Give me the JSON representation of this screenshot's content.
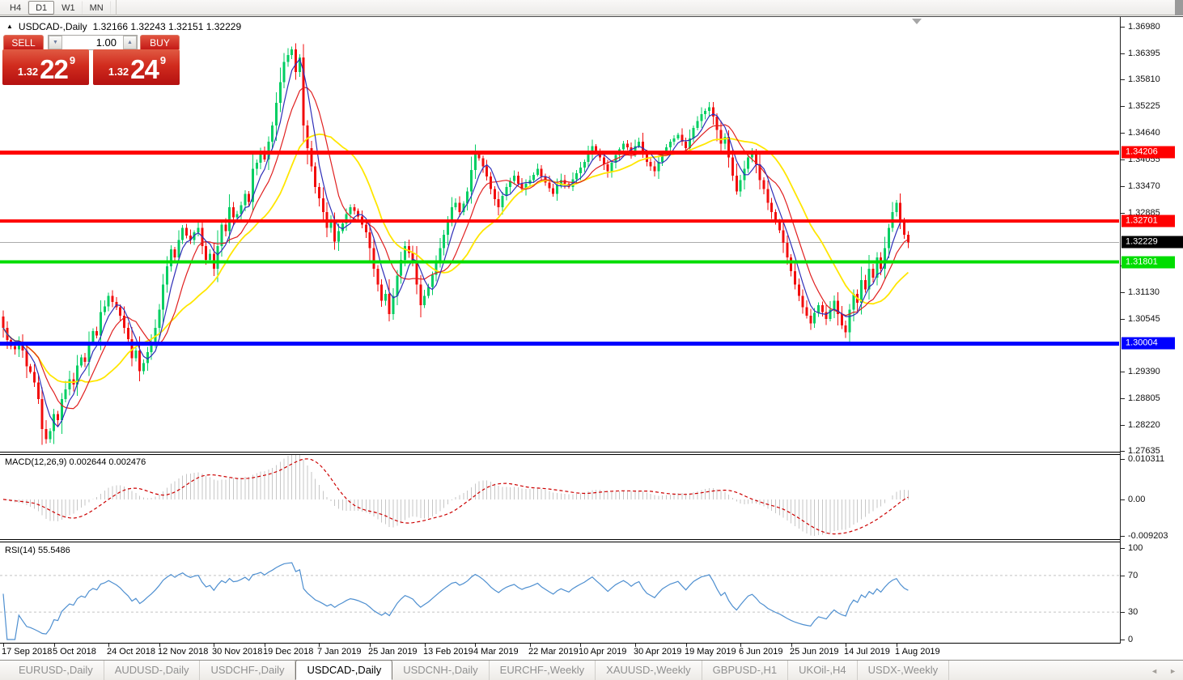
{
  "toolbar": {
    "timeframes": [
      {
        "label": "H4",
        "active": false
      },
      {
        "label": "D1",
        "active": true
      },
      {
        "label": "W1",
        "active": false
      },
      {
        "label": "MN",
        "active": false
      }
    ]
  },
  "icons": {
    "collapse": "▲",
    "spinner_down": "▼",
    "spinner_up": "▲",
    "tab_prev": "◄",
    "tab_next": "►"
  },
  "header": {
    "symbol": "USDCAD-,Daily",
    "ohlc": "1.32166 1.32243 1.32151 1.32229"
  },
  "trade_panel": {
    "sell_label": "SELL",
    "buy_label": "BUY",
    "volume": "1.00",
    "sell_price": {
      "prefix": "1.32",
      "big": "22",
      "sup": "9"
    },
    "buy_price": {
      "prefix": "1.32",
      "big": "24",
      "sup": "9"
    }
  },
  "price_axis": {
    "ticks": [
      {
        "label": "1.36980",
        "value": 1.3698
      },
      {
        "label": "1.36395",
        "value": 1.36395
      },
      {
        "label": "1.35810",
        "value": 1.3581
      },
      {
        "label": "1.35225",
        "value": 1.35225
      },
      {
        "label": "1.34640",
        "value": 1.3464
      },
      {
        "label": "1.34055",
        "value": 1.34055
      },
      {
        "label": "1.33470",
        "value": 1.3347
      },
      {
        "label": "1.32885",
        "value": 1.32885
      },
      {
        "label": "1.31715",
        "value": 1.31715
      },
      {
        "label": "1.31130",
        "value": 1.3113
      },
      {
        "label": "1.30545",
        "value": 1.30545
      },
      {
        "label": "1.29390",
        "value": 1.2939
      },
      {
        "label": "1.28805",
        "value": 1.28805
      },
      {
        "label": "1.28220",
        "value": 1.2822
      },
      {
        "label": "1.27635",
        "value": 1.27635
      }
    ]
  },
  "levels": [
    {
      "label": "1.34206",
      "value": 1.34206,
      "color": "#ff0000",
      "thickness": 5
    },
    {
      "label": "1.32701",
      "value": 1.32701,
      "color": "#ff0000",
      "thickness": 4
    },
    {
      "label": "1.31801",
      "value": 1.31801,
      "color": "#00dd00",
      "thickness": 4
    },
    {
      "label": "1.30004",
      "value": 1.30004,
      "color": "#0000ff",
      "thickness": 5
    }
  ],
  "current_price": {
    "label": "1.32229",
    "value": 1.32229,
    "line_color": "#ababab",
    "badge_bg": "#000000"
  },
  "x_axis": {
    "labels": [
      {
        "text": "17 Sep 2018",
        "index": 0
      },
      {
        "text": "5 Oct 2018",
        "index": 13
      },
      {
        "text": "24 Oct 2018",
        "index": 27
      },
      {
        "text": "12 Nov 2018",
        "index": 40
      },
      {
        "text": "30 Nov 2018",
        "index": 54
      },
      {
        "text": "19 Dec 2018",
        "index": 67
      },
      {
        "text": "7 Jan 2019",
        "index": 81
      },
      {
        "text": "25 Jan 2019",
        "index": 94
      },
      {
        "text": "13 Feb 2019",
        "index": 108
      },
      {
        "text": "4 Mar 2019",
        "index": 121
      },
      {
        "text": "22 Mar 2019",
        "index": 135
      },
      {
        "text": "10 Apr 2019",
        "index": 148
      },
      {
        "text": "30 Apr 2019",
        "index": 162
      },
      {
        "text": "19 May 2019",
        "index": 175
      },
      {
        "text": "6 Jun 2019",
        "index": 189
      },
      {
        "text": "25 Jun 2019",
        "index": 202
      },
      {
        "text": "14 Jul 2019",
        "index": 216
      },
      {
        "text": "1 Aug 2019",
        "index": 229
      }
    ]
  },
  "macd_panel": {
    "legend": "MACD(12,26,9) 0.002644 0.002476",
    "ticks": [
      {
        "label": "0.010311",
        "value": 0.010311
      },
      {
        "label": "0.00",
        "value": 0
      },
      {
        "label": "-0.009203",
        "value": -0.009203
      }
    ],
    "bar_color": "#c6c6c6",
    "signal_color": "#cc0000"
  },
  "rsi_panel": {
    "legend": "RSI(14) 55.5486",
    "ticks": [
      {
        "label": "100",
        "value": 100
      },
      {
        "label": "70",
        "value": 70
      },
      {
        "label": "30",
        "value": 30
      },
      {
        "label": "0",
        "value": 0
      }
    ],
    "dashed_levels": [
      70,
      30
    ],
    "line_color": "#4e8fd0",
    "level_color": "#c4c4c4"
  },
  "tabs": {
    "items": [
      {
        "label": "EURUSD-,Daily",
        "active": false
      },
      {
        "label": "AUDUSD-,Daily",
        "active": false
      },
      {
        "label": "USDCHF-,Daily",
        "active": false
      },
      {
        "label": "USDCAD-,Daily",
        "active": true
      },
      {
        "label": "USDCNH-,Daily",
        "active": false
      },
      {
        "label": "EURCHF-,Weekly",
        "active": false
      },
      {
        "label": "XAUUSD-,Weekly",
        "active": false
      },
      {
        "label": "GBPUSD-,H1",
        "active": false
      },
      {
        "label": "UKOil-,H4",
        "active": false
      },
      {
        "label": "USDX-,Weekly",
        "active": false
      }
    ]
  },
  "chart_data": {
    "type": "candlestick",
    "title": "USDCAD-,Daily",
    "x_range": "17 Sep 2018 - 8 Aug 2019",
    "ylim": [
      1.2762,
      1.3717
    ],
    "bull_color": "#00ce62",
    "bear_color": "#f20c0c",
    "open_first": 1.306,
    "last_close": 1.32229,
    "closes": [
      1.3035,
      1.3008,
      1.2995,
      1.2988,
      1.3005,
      1.2985,
      1.295,
      1.2938,
      1.2915,
      1.2878,
      1.2812,
      1.279,
      1.2808,
      1.2845,
      1.2832,
      1.2878,
      1.29,
      1.2922,
      1.291,
      1.2952,
      1.297,
      1.296,
      1.3005,
      1.3028,
      1.3018,
      1.307,
      1.3082,
      1.3105,
      1.3092,
      1.308,
      1.3062,
      1.3035,
      1.301,
      1.2968,
      1.2985,
      1.294,
      1.2958,
      1.2982,
      1.3005,
      1.3035,
      1.3075,
      1.313,
      1.317,
      1.3208,
      1.319,
      1.3228,
      1.3255,
      1.3238,
      1.3228,
      1.3245,
      1.3255,
      1.3215,
      1.3185,
      1.3198,
      1.3165,
      1.3215,
      1.3262,
      1.3248,
      1.33,
      1.3278,
      1.3285,
      1.3305,
      1.333,
      1.3312,
      1.3385,
      1.3398,
      1.342,
      1.3405,
      1.3445,
      1.348,
      1.353,
      1.3575,
      1.362,
      1.3635,
      1.3648,
      1.3598,
      1.363,
      1.348,
      1.343,
      1.339,
      1.3345,
      1.332,
      1.329,
      1.3255,
      1.327,
      1.3225,
      1.3248,
      1.3265,
      1.3285,
      1.33,
      1.3292,
      1.328,
      1.3262,
      1.3245,
      1.321,
      1.3165,
      1.313,
      1.3095,
      1.311,
      1.3065,
      1.3105,
      1.315,
      1.3185,
      1.3215,
      1.32,
      1.318,
      1.313,
      1.3085,
      1.3105,
      1.3125,
      1.3152,
      1.318,
      1.321,
      1.324,
      1.3268,
      1.33,
      1.331,
      1.329,
      1.3308,
      1.3335,
      1.3382,
      1.342,
      1.3408,
      1.339,
      1.3368,
      1.334,
      1.3318,
      1.33,
      1.3325,
      1.3345,
      1.3358,
      1.337,
      1.3352,
      1.334,
      1.3352,
      1.336,
      1.3372,
      1.3385,
      1.3368,
      1.3355,
      1.3342,
      1.333,
      1.3348,
      1.336,
      1.3352,
      1.3345,
      1.3362,
      1.3375,
      1.3388,
      1.34,
      1.3418,
      1.3435,
      1.3422,
      1.341,
      1.3395,
      1.338,
      1.3398,
      1.3415,
      1.3428,
      1.344,
      1.3432,
      1.342,
      1.3435,
      1.3445,
      1.342,
      1.34,
      1.339,
      1.338,
      1.34,
      1.342,
      1.3432,
      1.3445,
      1.3452,
      1.346,
      1.3445,
      1.343,
      1.3452,
      1.3475,
      1.349,
      1.3505,
      1.3512,
      1.352,
      1.35,
      1.347,
      1.344,
      1.3455,
      1.341,
      1.337,
      1.3335,
      1.336,
      1.3385,
      1.341,
      1.342,
      1.3395,
      1.336,
      1.334,
      1.331,
      1.329,
      1.3268,
      1.325,
      1.3222,
      1.319,
      1.316,
      1.313,
      1.3105,
      1.308,
      1.3062,
      1.3045,
      1.3068,
      1.3085,
      1.307,
      1.3055,
      1.3075,
      1.3095,
      1.3065,
      1.304,
      1.3025,
      1.3075,
      1.311,
      1.309,
      1.314,
      1.312,
      1.3165,
      1.3145,
      1.319,
      1.3165,
      1.321,
      1.3255,
      1.329,
      1.331,
      1.327,
      1.324,
      1.32229
    ],
    "overlays": [
      {
        "name": "ma-fast",
        "type": "sma",
        "period": 5,
        "color": "#2e2eb8"
      },
      {
        "name": "ma-mid",
        "type": "sma",
        "period": 10,
        "color": "#e02020"
      },
      {
        "name": "ma-slow",
        "type": "sma",
        "period": 21,
        "color": "#ffe600"
      }
    ],
    "indicators": [
      {
        "name": "MACD",
        "params": [
          12,
          26,
          9
        ],
        "last_values": [
          0.002644,
          0.002476
        ],
        "ylim": [
          -0.01005,
          0.01125
        ]
      },
      {
        "name": "RSI",
        "params": [
          14
        ],
        "last_value": 55.5486,
        "ylim": [
          0,
          100
        ],
        "levels": [
          70,
          30
        ]
      }
    ]
  }
}
